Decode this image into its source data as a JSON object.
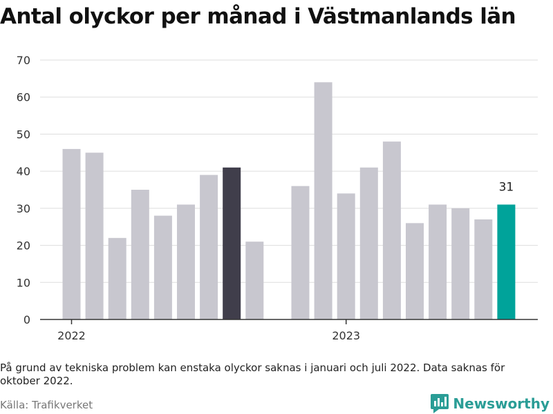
{
  "title": "Antal olyckor per månad i Västmanlands län",
  "chart_data": {
    "type": "bar",
    "ylim": [
      0,
      70
    ],
    "yticks": [
      0,
      10,
      20,
      30,
      40,
      50,
      60,
      70
    ],
    "grid": true,
    "xtick_labels": [
      {
        "label": "2022",
        "at": "2022-01"
      },
      {
        "label": "2023",
        "at": "2023-01"
      }
    ],
    "categories": [
      "2022-01",
      "2022-02",
      "2022-03",
      "2022-04",
      "2022-05",
      "2022-06",
      "2022-07",
      "2022-08",
      "2022-09",
      "2022-10",
      "2022-11",
      "2022-12",
      "2023-01",
      "2023-02",
      "2023-03",
      "2023-04",
      "2023-05",
      "2023-06",
      "2023-07",
      "2023-08",
      "2023-09",
      "2023-10"
    ],
    "values": [
      46,
      45,
      22,
      35,
      28,
      31,
      39,
      41,
      21,
      null,
      36,
      64,
      34,
      41,
      48,
      26,
      31,
      30,
      27,
      31,
      null,
      null
    ],
    "colors": {
      "default": "#c8c7cf",
      "highlight_previous_year": "#403e4b",
      "highlight_latest": "#00a39a"
    },
    "highlight_previous_year_category": "2022-08",
    "highlight_latest_category": "2023-08",
    "data_labels": [
      {
        "category": "2023-08",
        "text": "31"
      }
    ]
  },
  "note": "På grund av tekniska problem kan enstaka olyckor saknas i januari och juli 2022. Data saknas för oktober 2022.",
  "source": "Källa: Trafikverket",
  "brand": {
    "name": "Newsworthy",
    "color": "#2a9d96",
    "icon": "newsworthy-logo-icon"
  }
}
